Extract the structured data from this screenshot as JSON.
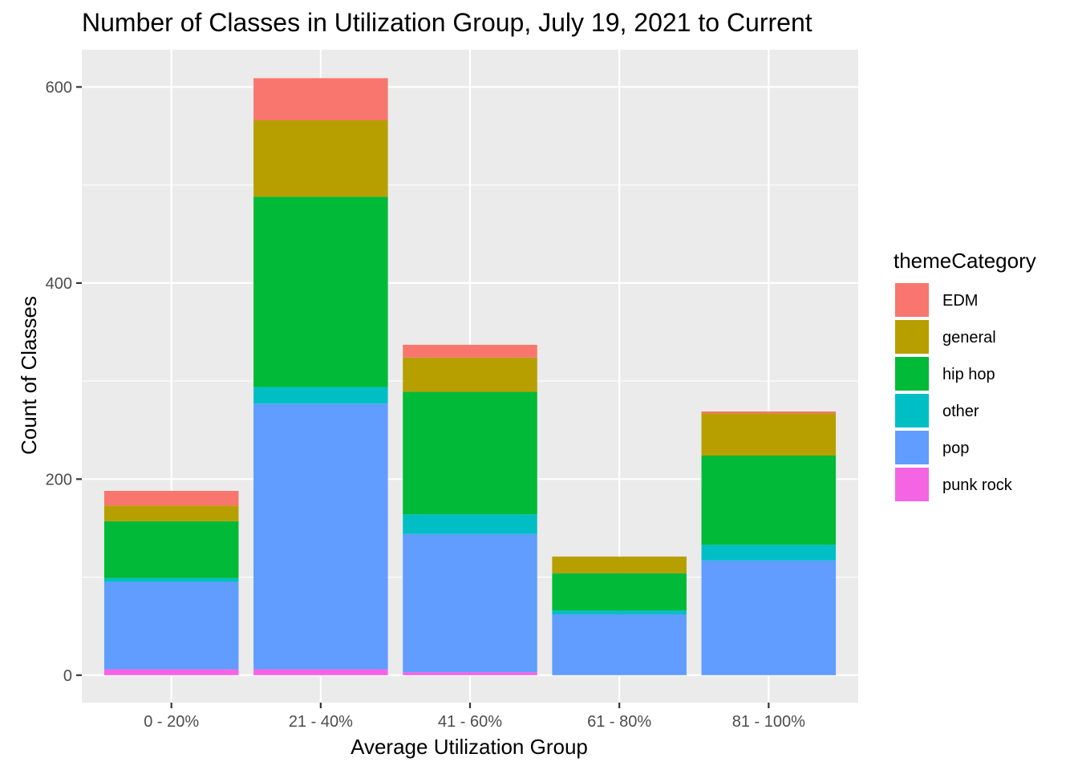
{
  "chart_data": {
    "type": "bar",
    "stacked": true,
    "title": "Number of Classes in Utilization Group, July 19, 2021 to Current",
    "xlabel": "Average Utilization Group",
    "ylabel": "Count of Classes",
    "categories": [
      "0 - 20%",
      "21 - 40%",
      "41 - 60%",
      "61 - 80%",
      "81 - 100%"
    ],
    "ylim": [
      -28,
      638
    ],
    "yticks": [
      0,
      200,
      400,
      600
    ],
    "yticks_labels": [
      "0",
      "200",
      "400",
      "600"
    ],
    "legend_title": "themeCategory",
    "legend_position": "right",
    "stack_order_bottom_to_top": [
      "punk rock",
      "pop",
      "other",
      "hip hop",
      "general",
      "EDM"
    ],
    "series": [
      {
        "name": "EDM",
        "color": "#F8766D",
        "values": [
          15,
          43,
          13,
          0,
          2
        ]
      },
      {
        "name": "general",
        "color": "#B79F00",
        "values": [
          16,
          78,
          35,
          17,
          43
        ]
      },
      {
        "name": "hip hop",
        "color": "#00BA38",
        "values": [
          58,
          194,
          125,
          38,
          91
        ]
      },
      {
        "name": "other",
        "color": "#00BFC4",
        "values": [
          4,
          17,
          20,
          4,
          16
        ]
      },
      {
        "name": "pop",
        "color": "#619CFF",
        "values": [
          89,
          271,
          141,
          62,
          117
        ]
      },
      {
        "name": "punk rock",
        "color": "#F564E3",
        "values": [
          6,
          6,
          3,
          0,
          0
        ]
      }
    ]
  }
}
